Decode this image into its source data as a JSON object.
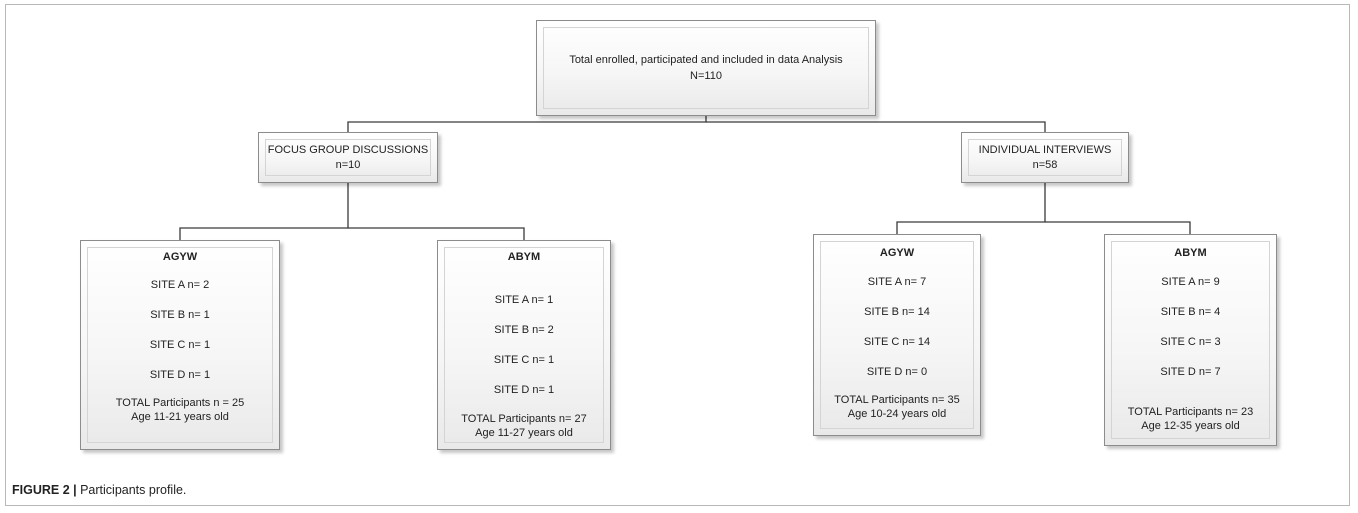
{
  "root": {
    "line1": "Total enrolled, participated and included in data Analysis",
    "line2": "N=110"
  },
  "branches": [
    {
      "title": "FOCUS GROUP DISCUSSIONS",
      "count": "n=10",
      "groups": [
        {
          "head": "AGYW",
          "sites": [
            "SITE A  n= 2",
            "SITE B  n= 1",
            "SITE C  n= 1",
            "SITE D  n= 1"
          ],
          "total": "TOTAL Participants n = 25",
          "age": "Age 11-21 years old"
        },
        {
          "head": "ABYM",
          "sites": [
            "SITE A n= 1",
            "SITE B n= 2",
            "SITE C n= 1",
            "SITE D n= 1"
          ],
          "total": "TOTAL Participants n= 27",
          "age": "Age 11-27 years old"
        }
      ]
    },
    {
      "title": "INDIVIDUAL INTERVIEWS",
      "count": "n=58",
      "groups": [
        {
          "head": "AGYW",
          "sites": [
            "SITE A n= 7",
            "SITE B n= 14",
            "SITE C n= 14",
            "SITE D n=  0"
          ],
          "total": "TOTAL Participants n= 35",
          "age": "Age 10-24 years old"
        },
        {
          "head": "ABYM",
          "sites": [
            "SITE A n= 9",
            "SITE B n= 4",
            "SITE C n= 3",
            "SITE D n= 7"
          ],
          "total": "TOTAL Participants n= 23",
          "age": "Age 12-35 years old"
        }
      ]
    }
  ],
  "caption": {
    "label": "FIGURE 2 |",
    "text": " Participants profile."
  }
}
